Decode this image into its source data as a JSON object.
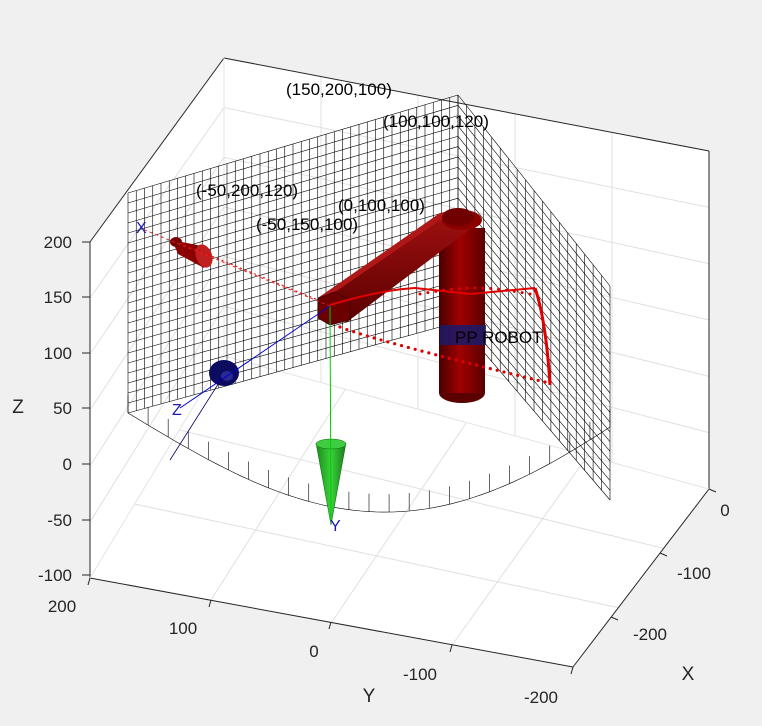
{
  "chart_data": {
    "type": "scatter",
    "title": "",
    "xlabel": "X",
    "ylabel": "Y",
    "zlabel": "Z",
    "x_ticks": [
      "0",
      "-100",
      "-200"
    ],
    "y_ticks": [
      "200",
      "100",
      "0",
      "-100",
      "-200"
    ],
    "z_ticks": [
      "200",
      "150",
      "100",
      "50",
      "0",
      "-50",
      "-100"
    ],
    "xlim": [
      -250,
      25
    ],
    "ylim": [
      -200,
      200
    ],
    "zlim": [
      -100,
      200
    ],
    "grid": true,
    "annotations": [
      {
        "text": "(150,200,100)"
      },
      {
        "text": "(100,100,120)"
      },
      {
        "text": "(-50,200,120)"
      },
      {
        "text": "(0,100,100)"
      },
      {
        "text": "(-50,150,100)"
      }
    ],
    "robot_label": "PP ROBOT",
    "frame_axes": {
      "x": "X",
      "y": "Y",
      "z": "Z"
    },
    "workspace_color": "#000000",
    "robot_color": "#8b0000",
    "trajectory_color": "#e00000",
    "frame_colors": {
      "x": "#0000cc",
      "y": "#00aa00",
      "z": "#0000cc"
    }
  }
}
